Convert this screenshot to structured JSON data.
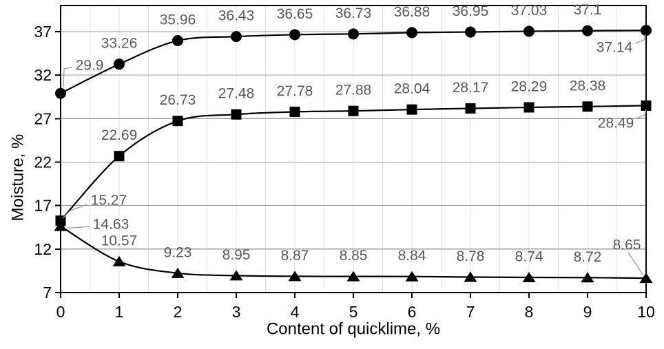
{
  "chart_data": {
    "type": "line",
    "title": "",
    "xlabel": "Content of quicklime, %",
    "ylabel": "Moisture, %",
    "x": [
      0,
      1,
      2,
      3,
      4,
      5,
      6,
      7,
      8,
      9,
      10
    ],
    "series": [
      {
        "name": "upper-series-circle-markers",
        "marker": "circle",
        "values": [
          29.9,
          33.26,
          35.96,
          36.43,
          36.65,
          36.73,
          36.88,
          36.95,
          37.03,
          37.1,
          37.14
        ]
      },
      {
        "name": "middle-series-square-markers",
        "marker": "square",
        "values": [
          15.27,
          22.69,
          26.73,
          27.48,
          27.78,
          27.88,
          28.04,
          28.17,
          28.29,
          28.38,
          28.49
        ]
      },
      {
        "name": "lower-series-triangle-markers",
        "marker": "triangle",
        "values": [
          14.63,
          10.57,
          9.23,
          8.95,
          8.87,
          8.85,
          8.84,
          8.78,
          8.74,
          8.72,
          8.65
        ]
      }
    ],
    "ylim": [
      7,
      40
    ],
    "xlim": [
      0,
      10
    ],
    "yticks": [
      7,
      12,
      17,
      22,
      27,
      32,
      37
    ],
    "xticks": [
      0,
      1,
      2,
      3,
      4,
      5,
      6,
      7,
      8,
      9,
      10
    ],
    "grid": true,
    "minor_vertical_grid_step": 0.5,
    "legend": false,
    "data_labels": true,
    "colors": {
      "series_line": "#000000",
      "marker_fill": "#000000",
      "data_label": "#595959",
      "leader_line": "#9b9b9b",
      "grid_major": "#9e9e9e",
      "grid_minor": "#e0e0e0",
      "axis_line": "#000000",
      "tick_label": "#000000",
      "axis_title": "#000000",
      "background": "#ffffff"
    }
  }
}
